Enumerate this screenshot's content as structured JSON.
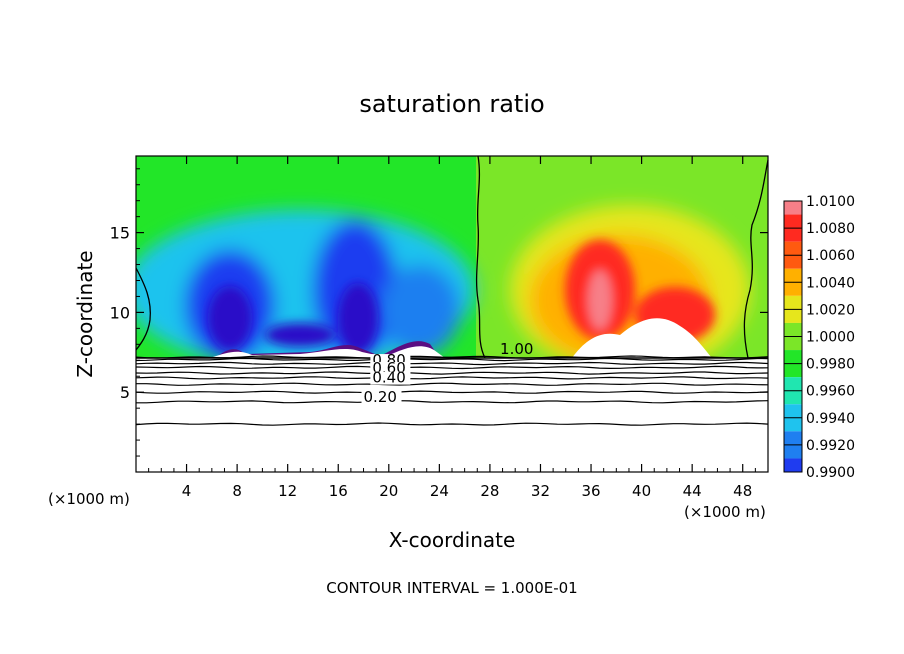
{
  "chart_data": {
    "type": "heatmap",
    "title": "saturation ratio",
    "xlabel": "X-coordinate",
    "ylabel": "Z-coordinate",
    "x_unit_label": "(×1000 m)",
    "x_unit_label_right": "(×1000 m)",
    "xlim": [
      0,
      50
    ],
    "ylim": [
      0,
      19.8
    ],
    "x_ticks": [
      4,
      8,
      12,
      16,
      20,
      24,
      28,
      32,
      36,
      40,
      44,
      48
    ],
    "y_ticks": [
      5,
      10,
      15
    ],
    "footer": "CONTOUR INTERVAL = 1.000E-01",
    "colorbar": {
      "levels": [
        "1.0100",
        "1.0080",
        "1.0060",
        "1.0040",
        "1.0020",
        "1.0000",
        "0.9980",
        "0.9960",
        "0.9940",
        "0.9920",
        "0.9900"
      ],
      "range": [
        0.99,
        1.01
      ],
      "colors": [
        "#5a0e82",
        "#2a10c8",
        "#1f3cf0",
        "#1f7ff0",
        "#1fc3ee",
        "#20e6b0",
        "#22e628",
        "#7be628",
        "#e6e61c",
        "#ffb000",
        "#ff5a10",
        "#ff2a20",
        "#f77f88"
      ]
    },
    "surface_height_km": 7.2,
    "contour_labels": [
      {
        "text": "1.00",
        "x": 28.8,
        "z": 7.4
      },
      {
        "text": "0.80",
        "x": 18.7,
        "z": 6.7
      },
      {
        "text": "0.60",
        "x": 18.7,
        "z": 6.2
      },
      {
        "text": "0.40",
        "x": 18.7,
        "z": 5.6
      },
      {
        "text": "0.20",
        "x": 18.0,
        "z": 4.4
      }
    ],
    "contour_lines_z": [
      7.2,
      7.05,
      6.8,
      6.55,
      6.2,
      5.9,
      5.5,
      5.0,
      4.4,
      3.0
    ],
    "features": {
      "dry_regions": [
        {
          "x": 8,
          "z_bottom": 8,
          "z_top": 12.5,
          "min": 0.99
        },
        {
          "x": 17,
          "z_bottom": 8,
          "z_top": 13.5,
          "min": 0.99
        },
        {
          "x": 23,
          "z_bottom": 8,
          "z_top": 12.5,
          "min": 0.9915
        }
      ],
      "moist_regions": [
        {
          "x": 36.5,
          "z_bottom": 9,
          "z_top": 14.5,
          "max": 1.01
        },
        {
          "x": 42,
          "z_bottom": 9,
          "z_top": 11.5,
          "max": 1.008
        }
      ]
    }
  }
}
